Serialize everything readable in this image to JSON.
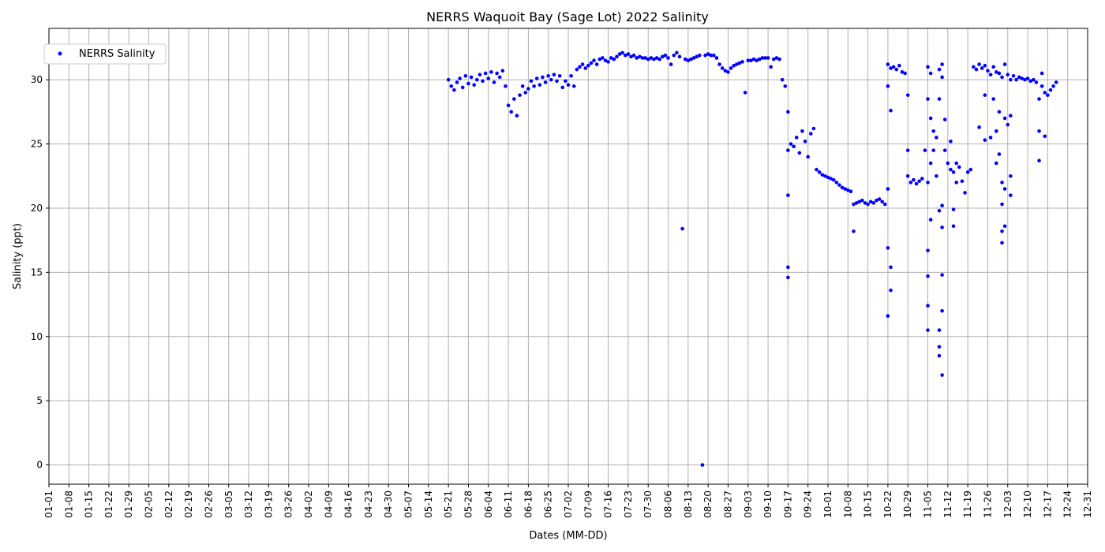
{
  "chart_data": {
    "type": "scatter",
    "title": "NERRS Waquoit Bay (Sage Lot) 2022 Salinity",
    "xlabel": "Dates (MM-DD)",
    "ylabel": "Salinity (ppt)",
    "x_range": [
      "01-01",
      "12-31"
    ],
    "ylim": [
      -1.5,
      34
    ],
    "yticks": [
      0,
      5,
      10,
      15,
      20,
      25,
      30
    ],
    "xtick_labels": [
      "01-01",
      "01-08",
      "01-15",
      "01-22",
      "01-29",
      "02-05",
      "02-12",
      "02-19",
      "02-26",
      "03-05",
      "03-12",
      "03-19",
      "03-26",
      "04-02",
      "04-09",
      "04-16",
      "04-23",
      "04-30",
      "05-07",
      "05-14",
      "05-21",
      "05-28",
      "06-04",
      "06-11",
      "06-18",
      "06-25",
      "07-02",
      "07-09",
      "07-16",
      "07-23",
      "07-30",
      "08-06",
      "08-13",
      "08-20",
      "08-27",
      "09-03",
      "09-10",
      "09-17",
      "09-24",
      "10-01",
      "10-08",
      "10-15",
      "10-22",
      "10-29",
      "11-05",
      "11-12",
      "11-19",
      "11-26",
      "12-03",
      "12-10",
      "12-17",
      "12-24",
      "12-31"
    ],
    "grid": true,
    "legend_position": "upper-left",
    "series": [
      {
        "name": "NERRS Salinity",
        "color": "#0000ff",
        "marker": "dot",
        "points": [
          [
            "05-21",
            30.0
          ],
          [
            "05-22",
            29.5
          ],
          [
            "05-23",
            29.2
          ],
          [
            "05-24",
            29.8
          ],
          [
            "05-25",
            30.1
          ],
          [
            "05-26",
            29.4
          ],
          [
            "05-27",
            30.3
          ],
          [
            "05-28",
            29.7
          ],
          [
            "05-29",
            30.2
          ],
          [
            "05-30",
            29.6
          ],
          [
            "05-31",
            30.0
          ],
          [
            "06-01",
            30.4
          ],
          [
            "06-02",
            29.9
          ],
          [
            "06-03",
            30.5
          ],
          [
            "06-04",
            30.1
          ],
          [
            "06-05",
            30.6
          ],
          [
            "06-06",
            29.8
          ],
          [
            "06-07",
            30.5
          ],
          [
            "06-08",
            30.2
          ],
          [
            "06-09",
            30.7
          ],
          [
            "06-10",
            29.5
          ],
          [
            "06-11",
            28.0
          ],
          [
            "06-12",
            27.5
          ],
          [
            "06-13",
            28.5
          ],
          [
            "06-14",
            27.2
          ],
          [
            "06-15",
            28.8
          ],
          [
            "06-16",
            29.5
          ],
          [
            "06-17",
            29.0
          ],
          [
            "06-18",
            29.3
          ],
          [
            "06-19",
            29.9
          ],
          [
            "06-20",
            29.5
          ],
          [
            "06-21",
            30.1
          ],
          [
            "06-22",
            29.6
          ],
          [
            "06-23",
            30.2
          ],
          [
            "06-24",
            29.8
          ],
          [
            "06-25",
            30.3
          ],
          [
            "06-26",
            30.0
          ],
          [
            "06-27",
            30.4
          ],
          [
            "06-28",
            29.9
          ],
          [
            "06-29",
            30.3
          ],
          [
            "06-30",
            29.4
          ],
          [
            "07-01",
            29.9
          ],
          [
            "07-02",
            29.6
          ],
          [
            "07-03",
            30.3
          ],
          [
            "07-04",
            29.5
          ],
          [
            "07-05",
            30.8
          ],
          [
            "07-06",
            31.0
          ],
          [
            "07-07",
            31.2
          ],
          [
            "07-08",
            30.9
          ],
          [
            "07-09",
            31.1
          ],
          [
            "07-10",
            31.3
          ],
          [
            "07-11",
            31.5
          ],
          [
            "07-12",
            31.2
          ],
          [
            "07-13",
            31.6
          ],
          [
            "07-14",
            31.7
          ],
          [
            "07-15",
            31.5
          ],
          [
            "07-16",
            31.4
          ],
          [
            "07-17",
            31.7
          ],
          [
            "07-18",
            31.6
          ],
          [
            "07-19",
            31.8
          ],
          [
            "07-20",
            32.0
          ],
          [
            "07-21",
            32.1
          ],
          [
            "07-22",
            31.9
          ],
          [
            "07-23",
            32.0
          ],
          [
            "07-24",
            31.8
          ],
          [
            "07-25",
            31.9
          ],
          [
            "07-26",
            31.7
          ],
          [
            "07-27",
            31.8
          ],
          [
            "07-28",
            31.7
          ],
          [
            "07-29",
            31.7
          ],
          [
            "07-30",
            31.6
          ],
          [
            "07-31",
            31.7
          ],
          [
            "08-01",
            31.6
          ],
          [
            "08-02",
            31.7
          ],
          [
            "08-03",
            31.6
          ],
          [
            "08-04",
            31.8
          ],
          [
            "08-05",
            31.9
          ],
          [
            "08-06",
            31.7
          ],
          [
            "08-07",
            31.2
          ],
          [
            "08-08",
            31.9
          ],
          [
            "08-09",
            32.1
          ],
          [
            "08-10",
            31.8
          ],
          [
            "08-11",
            18.4
          ],
          [
            "08-12",
            31.6
          ],
          [
            "08-13",
            31.5
          ],
          [
            "08-14",
            31.6
          ],
          [
            "08-15",
            31.7
          ],
          [
            "08-16",
            31.8
          ],
          [
            "08-17",
            31.9
          ],
          [
            "08-18",
            0.0
          ],
          [
            "08-19",
            31.9
          ],
          [
            "08-20",
            32.0
          ],
          [
            "08-21",
            31.9
          ],
          [
            "08-22",
            31.9
          ],
          [
            "08-23",
            31.7
          ],
          [
            "08-24",
            31.2
          ],
          [
            "08-25",
            30.9
          ],
          [
            "08-26",
            30.7
          ],
          [
            "08-27",
            30.6
          ],
          [
            "08-28",
            30.9
          ],
          [
            "08-29",
            31.1
          ],
          [
            "08-30",
            31.2
          ],
          [
            "08-31",
            31.3
          ],
          [
            "09-01",
            31.4
          ],
          [
            "09-02",
            29.0
          ],
          [
            "09-03",
            31.5
          ],
          [
            "09-04",
            31.5
          ],
          [
            "09-05",
            31.6
          ],
          [
            "09-06",
            31.5
          ],
          [
            "09-07",
            31.6
          ],
          [
            "09-08",
            31.7
          ],
          [
            "09-09",
            31.7
          ],
          [
            "09-10",
            31.7
          ],
          [
            "09-11",
            31.0
          ],
          [
            "09-12",
            31.6
          ],
          [
            "09-13",
            31.7
          ],
          [
            "09-14",
            31.6
          ],
          [
            "09-15",
            30.0
          ],
          [
            "09-16",
            29.5
          ],
          [
            "09-17",
            27.5
          ],
          [
            "09-17",
            24.5
          ],
          [
            "09-17",
            21.0
          ],
          [
            "09-17",
            15.4
          ],
          [
            "09-17",
            14.6
          ],
          [
            "09-18",
            25.0
          ],
          [
            "09-19",
            24.8
          ],
          [
            "09-20",
            25.5
          ],
          [
            "09-21",
            24.3
          ],
          [
            "09-22",
            26.0
          ],
          [
            "09-23",
            25.2
          ],
          [
            "09-24",
            24.0
          ],
          [
            "09-25",
            25.8
          ],
          [
            "09-26",
            26.2
          ],
          [
            "09-27",
            23.0
          ],
          [
            "09-28",
            22.8
          ],
          [
            "09-29",
            22.6
          ],
          [
            "09-30",
            22.5
          ],
          [
            "10-01",
            22.4
          ],
          [
            "10-02",
            22.3
          ],
          [
            "10-03",
            22.2
          ],
          [
            "10-04",
            22.0
          ],
          [
            "10-05",
            21.8
          ],
          [
            "10-06",
            21.6
          ],
          [
            "10-07",
            21.5
          ],
          [
            "10-08",
            21.4
          ],
          [
            "10-09",
            21.3
          ],
          [
            "10-10",
            20.3
          ],
          [
            "10-10",
            18.2
          ],
          [
            "10-11",
            20.4
          ],
          [
            "10-12",
            20.5
          ],
          [
            "10-13",
            20.6
          ],
          [
            "10-14",
            20.4
          ],
          [
            "10-15",
            20.3
          ],
          [
            "10-16",
            20.5
          ],
          [
            "10-17",
            20.4
          ],
          [
            "10-18",
            20.6
          ],
          [
            "10-19",
            20.7
          ],
          [
            "10-20",
            20.5
          ],
          [
            "10-21",
            20.3
          ],
          [
            "10-22",
            31.2
          ],
          [
            "10-22",
            29.5
          ],
          [
            "10-22",
            21.5
          ],
          [
            "10-22",
            16.9
          ],
          [
            "10-22",
            11.6
          ],
          [
            "10-23",
            30.9
          ],
          [
            "10-23",
            27.6
          ],
          [
            "10-23",
            15.4
          ],
          [
            "10-23",
            13.6
          ],
          [
            "10-24",
            31.0
          ],
          [
            "10-25",
            30.8
          ],
          [
            "10-26",
            31.1
          ],
          [
            "10-27",
            30.6
          ],
          [
            "10-28",
            30.5
          ],
          [
            "10-29",
            24.5
          ],
          [
            "10-29",
            22.5
          ],
          [
            "10-29",
            28.8
          ],
          [
            "10-30",
            22.0
          ],
          [
            "10-31",
            22.2
          ],
          [
            "11-01",
            21.9
          ],
          [
            "11-02",
            22.1
          ],
          [
            "11-03",
            22.3
          ],
          [
            "11-04",
            24.5
          ],
          [
            "11-05",
            31.0
          ],
          [
            "11-05",
            28.5
          ],
          [
            "11-05",
            22.0
          ],
          [
            "11-05",
            16.7
          ],
          [
            "11-05",
            14.7
          ],
          [
            "11-05",
            12.4
          ],
          [
            "11-05",
            10.5
          ],
          [
            "11-06",
            30.5
          ],
          [
            "11-06",
            27.0
          ],
          [
            "11-06",
            23.5
          ],
          [
            "11-06",
            19.1
          ],
          [
            "11-07",
            26.0
          ],
          [
            "11-07",
            24.5
          ],
          [
            "11-08",
            25.5
          ],
          [
            "11-08",
            22.5
          ],
          [
            "11-09",
            30.8
          ],
          [
            "11-09",
            28.5
          ],
          [
            "11-09",
            19.8
          ],
          [
            "11-09",
            10.5
          ],
          [
            "11-09",
            8.5
          ],
          [
            "11-09",
            9.2
          ],
          [
            "11-10",
            31.2
          ],
          [
            "11-10",
            30.2
          ],
          [
            "11-10",
            20.2
          ],
          [
            "11-10",
            18.5
          ],
          [
            "11-10",
            14.8
          ],
          [
            "11-10",
            12.0
          ],
          [
            "11-10",
            7.0
          ],
          [
            "11-11",
            24.5
          ],
          [
            "11-11",
            26.9
          ],
          [
            "11-12",
            23.5
          ],
          [
            "11-13",
            23.0
          ],
          [
            "11-13",
            25.2
          ],
          [
            "11-14",
            22.8
          ],
          [
            "11-14",
            19.9
          ],
          [
            "11-14",
            18.6
          ],
          [
            "11-15",
            23.5
          ],
          [
            "11-15",
            22.0
          ],
          [
            "11-16",
            23.2
          ],
          [
            "11-17",
            22.1
          ],
          [
            "11-18",
            21.2
          ],
          [
            "11-19",
            22.8
          ],
          [
            "11-20",
            23.0
          ],
          [
            "11-21",
            31.0
          ],
          [
            "11-22",
            30.8
          ],
          [
            "11-23",
            26.3
          ],
          [
            "11-23",
            31.2
          ],
          [
            "11-24",
            30.9
          ],
          [
            "11-25",
            31.1
          ],
          [
            "11-25",
            28.8
          ],
          [
            "11-25",
            25.3
          ],
          [
            "11-26",
            30.7
          ],
          [
            "11-27",
            30.4
          ],
          [
            "11-27",
            25.5
          ],
          [
            "11-28",
            31.0
          ],
          [
            "11-28",
            28.5
          ],
          [
            "11-29",
            30.6
          ],
          [
            "11-29",
            26.0
          ],
          [
            "11-29",
            23.5
          ],
          [
            "11-30",
            30.5
          ],
          [
            "11-30",
            27.5
          ],
          [
            "11-30",
            24.2
          ],
          [
            "12-01",
            30.2
          ],
          [
            "12-01",
            22.0
          ],
          [
            "12-01",
            20.3
          ],
          [
            "12-01",
            18.2
          ],
          [
            "12-01",
            17.3
          ],
          [
            "12-02",
            31.2
          ],
          [
            "12-02",
            27.0
          ],
          [
            "12-02",
            21.5
          ],
          [
            "12-02",
            18.6
          ],
          [
            "12-03",
            30.4
          ],
          [
            "12-03",
            26.5
          ],
          [
            "12-04",
            30.0
          ],
          [
            "12-04",
            27.2
          ],
          [
            "12-04",
            22.5
          ],
          [
            "12-04",
            21.0
          ],
          [
            "12-05",
            30.3
          ],
          [
            "12-06",
            30.0
          ],
          [
            "12-07",
            30.2
          ],
          [
            "12-08",
            30.1
          ],
          [
            "12-09",
            30.0
          ],
          [
            "12-10",
            30.1
          ],
          [
            "12-11",
            29.9
          ],
          [
            "12-12",
            30.0
          ],
          [
            "12-13",
            29.8
          ],
          [
            "12-14",
            28.5
          ],
          [
            "12-14",
            26.0
          ],
          [
            "12-14",
            23.7
          ],
          [
            "12-15",
            30.5
          ],
          [
            "12-15",
            29.5
          ],
          [
            "12-16",
            29.0
          ],
          [
            "12-16",
            25.6
          ],
          [
            "12-17",
            28.8
          ],
          [
            "12-18",
            29.2
          ],
          [
            "12-19",
            29.5
          ],
          [
            "12-20",
            29.8
          ]
        ]
      }
    ]
  }
}
